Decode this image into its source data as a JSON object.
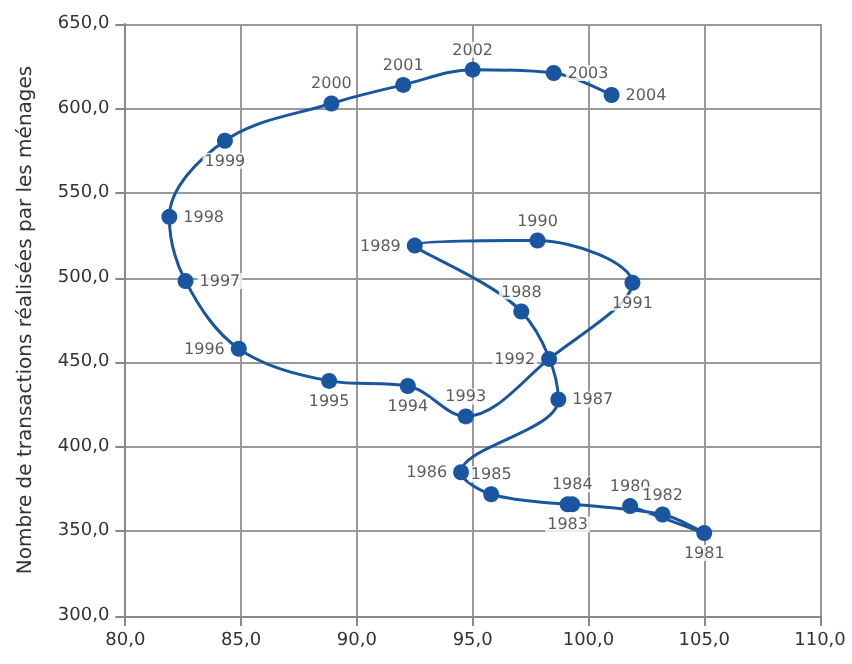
{
  "chart_data": {
    "type": "line",
    "ylabel": "Nombre de transactions réalisées par les ménages",
    "x": [
      101.8,
      105.0,
      103.2,
      99.1,
      99.3,
      95.8,
      94.5,
      98.7,
      97.1,
      92.5,
      97.8,
      101.9,
      98.3,
      94.7,
      92.2,
      88.8,
      84.9,
      82.6,
      81.9,
      84.3,
      88.9,
      92.0,
      95.0,
      98.5,
      101.0
    ],
    "series": [
      {
        "color": "#1a56a0",
        "values": [
          365,
          349,
          360,
          366,
          366,
          372,
          385,
          428,
          480,
          519,
          522,
          497,
          452,
          418,
          436,
          439,
          458,
          498,
          536,
          581,
          603,
          614,
          623,
          621,
          608
        ]
      }
    ],
    "annotations": [
      {
        "text": "1980",
        "x": 101.8,
        "y": 365
      },
      {
        "text": "1981",
        "x": 105.0,
        "y": 349
      },
      {
        "text": "1982",
        "x": 103.2,
        "y": 360
      },
      {
        "text": "1983",
        "x": 99.1,
        "y": 366
      },
      {
        "text": "1984",
        "x": 99.3,
        "y": 366
      },
      {
        "text": "1985",
        "x": 95.8,
        "y": 372
      },
      {
        "text": "1986",
        "x": 94.5,
        "y": 385
      },
      {
        "text": "1987",
        "x": 98.7,
        "y": 428
      },
      {
        "text": "1988",
        "x": 97.1,
        "y": 480
      },
      {
        "text": "1989",
        "x": 92.5,
        "y": 519
      },
      {
        "text": "1990",
        "x": 97.8,
        "y": 522
      },
      {
        "text": "1991",
        "x": 101.9,
        "y": 497
      },
      {
        "text": "1992",
        "x": 98.3,
        "y": 452
      },
      {
        "text": "1993",
        "x": 94.7,
        "y": 418
      },
      {
        "text": "1994",
        "x": 92.2,
        "y": 436
      },
      {
        "text": "1995",
        "x": 88.8,
        "y": 439
      },
      {
        "text": "1996",
        "x": 84.9,
        "y": 458
      },
      {
        "text": "1997",
        "x": 82.6,
        "y": 498
      },
      {
        "text": "1998",
        "x": 81.9,
        "y": 536
      },
      {
        "text": "1999",
        "x": 84.3,
        "y": 581
      },
      {
        "text": "2000",
        "x": 88.9,
        "y": 603
      },
      {
        "text": "2001",
        "x": 92.0,
        "y": 614
      },
      {
        "text": "2002",
        "x": 95.0,
        "y": 623
      },
      {
        "text": "2003",
        "x": 98.5,
        "y": 621
      },
      {
        "text": "2004",
        "x": 101.0,
        "y": 608
      }
    ],
    "xlim": [
      80,
      110
    ],
    "xticks": [
      {
        "value": 80,
        "label": "80,0"
      },
      {
        "value": 85,
        "label": "85,0"
      },
      {
        "value": 90,
        "label": "90,0"
      },
      {
        "value": 95,
        "label": "95,0"
      },
      {
        "value": 100,
        "label": "100,0"
      },
      {
        "value": 105,
        "label": "105,0"
      },
      {
        "value": 110,
        "label": "110,0"
      }
    ],
    "ylim": [
      300,
      650
    ],
    "yticks": [
      {
        "value": 300,
        "label": "300,0"
      },
      {
        "value": 350,
        "label": "350,0"
      },
      {
        "value": 400,
        "label": "400,0"
      },
      {
        "value": 450,
        "label": "450,0"
      },
      {
        "value": 500,
        "label": "500,0"
      },
      {
        "value": 550,
        "label": "550,0"
      },
      {
        "value": 600,
        "label": "600,0"
      },
      {
        "value": 650,
        "label": "650,0"
      }
    ],
    "grid": true,
    "marker": "circle",
    "line_style": "solid"
  }
}
